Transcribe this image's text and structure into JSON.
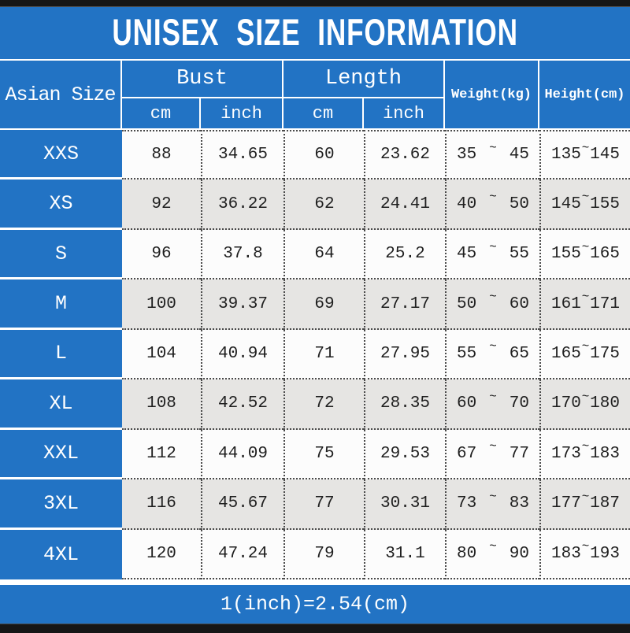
{
  "title": "UNISEX SIZE INFORMATION",
  "footer_note": "1(inch)=2.54(cm)",
  "colors": {
    "accent_blue": "#2273C4",
    "alt_row_gray": "#E6E5E3",
    "bar_black": "#161616"
  },
  "table": {
    "range_separator": "~",
    "header": {
      "size_col": "Asian Size",
      "bust": "Bust",
      "length": "Length",
      "weight": "Weight(kg)",
      "height": "Height(cm)",
      "unit_cm": "cm",
      "unit_inch": "inch"
    },
    "rows": [
      {
        "size": "XXS",
        "bust_cm": "88",
        "bust_inch": "34.65",
        "length_cm": "60",
        "length_inch": "23.62",
        "weight_min": "35",
        "weight_max": "45",
        "height_min": "135",
        "height_max": "145"
      },
      {
        "size": "XS",
        "bust_cm": "92",
        "bust_inch": "36.22",
        "length_cm": "62",
        "length_inch": "24.41",
        "weight_min": "40",
        "weight_max": "50",
        "height_min": "145",
        "height_max": "155"
      },
      {
        "size": "S",
        "bust_cm": "96",
        "bust_inch": "37.8",
        "length_cm": "64",
        "length_inch": "25.2",
        "weight_min": "45",
        "weight_max": "55",
        "height_min": "155",
        "height_max": "165"
      },
      {
        "size": "M",
        "bust_cm": "100",
        "bust_inch": "39.37",
        "length_cm": "69",
        "length_inch": "27.17",
        "weight_min": "50",
        "weight_max": "60",
        "height_min": "161",
        "height_max": "171"
      },
      {
        "size": "L",
        "bust_cm": "104",
        "bust_inch": "40.94",
        "length_cm": "71",
        "length_inch": "27.95",
        "weight_min": "55",
        "weight_max": "65",
        "height_min": "165",
        "height_max": "175"
      },
      {
        "size": "XL",
        "bust_cm": "108",
        "bust_inch": "42.52",
        "length_cm": "72",
        "length_inch": "28.35",
        "weight_min": "60",
        "weight_max": "70",
        "height_min": "170",
        "height_max": "180"
      },
      {
        "size": "XXL",
        "bust_cm": "112",
        "bust_inch": "44.09",
        "length_cm": "75",
        "length_inch": "29.53",
        "weight_min": "67",
        "weight_max": "77",
        "height_min": "173",
        "height_max": "183"
      },
      {
        "size": "3XL",
        "bust_cm": "116",
        "bust_inch": "45.67",
        "length_cm": "77",
        "length_inch": "30.31",
        "weight_min": "73",
        "weight_max": "83",
        "height_min": "177",
        "height_max": "187"
      },
      {
        "size": "4XL",
        "bust_cm": "120",
        "bust_inch": "47.24",
        "length_cm": "79",
        "length_inch": "31.1",
        "weight_min": "80",
        "weight_max": "90",
        "height_min": "183",
        "height_max": "193"
      }
    ]
  }
}
